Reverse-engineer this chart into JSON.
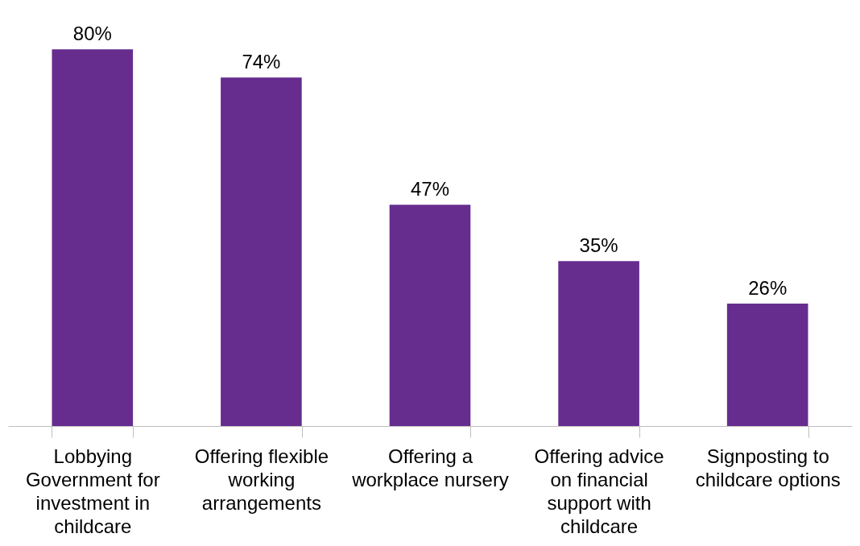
{
  "chart_data": {
    "type": "bar",
    "categories": [
      "Lobbying Government for investment in childcare",
      "Offering flexible working arrangements",
      "Offering a workplace nursery",
      "Offering advice on financial support with childcare",
      "Signposting to childcare options"
    ],
    "values": [
      80,
      74,
      47,
      35,
      26
    ],
    "value_labels": [
      "80%",
      "74%",
      "47%",
      "35%",
      "26%"
    ],
    "color": "#662d8f",
    "grid": false
  }
}
